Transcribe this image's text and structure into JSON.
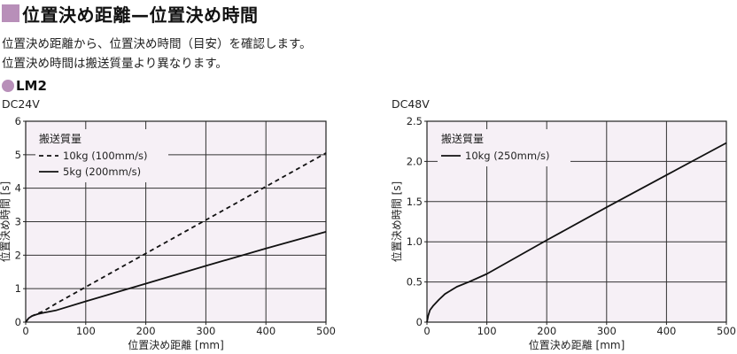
{
  "header": {
    "title": "位置決め距離—位置決め時間",
    "description_line1": "位置決め距離から、位置決め時間（目安）を確認します。",
    "description_line2": "位置決め時間は搬送質量より異なります。",
    "subheading": "LM2",
    "accent_color": "#b88fb9"
  },
  "chart_data": [
    {
      "type": "line",
      "title": "DC24V",
      "xlabel": "位置決め距離 [mm]",
      "ylabel": "位置決め時間 [s]",
      "xlim": [
        0,
        500
      ],
      "ylim": [
        0,
        6
      ],
      "xticks": [
        0,
        100,
        200,
        300,
        400,
        500
      ],
      "yticks": [
        0,
        1,
        2,
        3,
        4,
        5,
        6
      ],
      "grid": true,
      "background": "#f6f0f6",
      "legend_title": "搬送質量",
      "legend_position": "top-left",
      "series": [
        {
          "name": "10kg (100mm/s)",
          "style": "dashed",
          "x": [
            0,
            5,
            10,
            20,
            30,
            50,
            100,
            200,
            300,
            400,
            500
          ],
          "y": [
            0,
            0.12,
            0.18,
            0.26,
            0.33,
            0.55,
            1.05,
            2.05,
            3.05,
            4.05,
            5.05
          ]
        },
        {
          "name": "5kg (200mm/s)",
          "style": "solid",
          "x": [
            0,
            5,
            10,
            20,
            30,
            50,
            100,
            200,
            300,
            400,
            500
          ],
          "y": [
            0,
            0.12,
            0.18,
            0.24,
            0.28,
            0.35,
            0.62,
            1.15,
            1.68,
            2.2,
            2.7
          ]
        }
      ]
    },
    {
      "type": "line",
      "title": "DC48V",
      "xlabel": "位置決め距離 [mm]",
      "ylabel": "位置決め時間 [s]",
      "xlim": [
        0,
        500
      ],
      "ylim": [
        0,
        2.5
      ],
      "xticks": [
        0,
        100,
        200,
        300,
        400,
        500
      ],
      "yticks": [
        0,
        0.5,
        1.0,
        1.5,
        2.0,
        2.5
      ],
      "ytick_labels": [
        "0",
        "0.5",
        "1.0",
        "1.5",
        "2.0",
        "2.5"
      ],
      "grid": true,
      "background": "#f6f0f6",
      "legend_title": "搬送質量",
      "legend_position": "top-left",
      "series": [
        {
          "name": "10kg (250mm/s)",
          "style": "solid",
          "x": [
            0,
            2,
            5,
            10,
            20,
            30,
            50,
            70,
            100,
            200,
            300,
            400,
            500
          ],
          "y": [
            0,
            0.08,
            0.15,
            0.2,
            0.28,
            0.35,
            0.44,
            0.5,
            0.6,
            1.02,
            1.43,
            1.83,
            2.23
          ]
        }
      ]
    }
  ]
}
